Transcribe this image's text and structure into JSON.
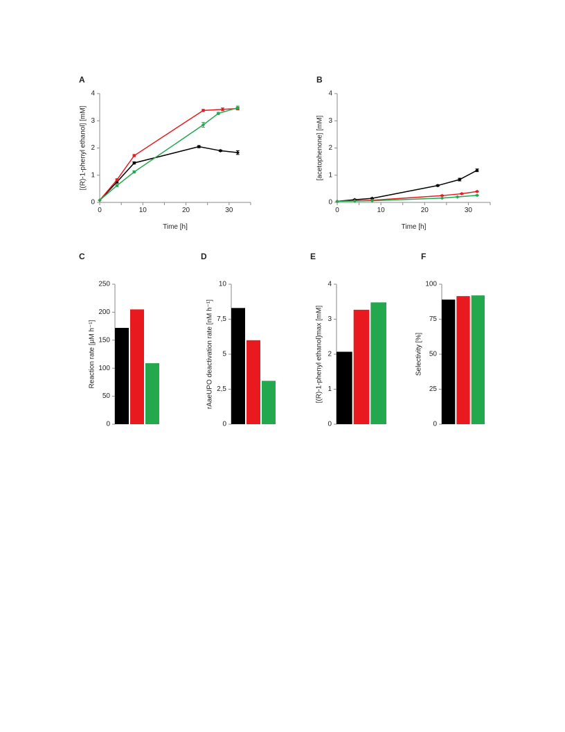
{
  "chart_data": [
    {
      "panel": "A",
      "type": "line",
      "xlabel": "Time [h]",
      "ylabel": "[(R)-1-phenyl ethanol] [mM]",
      "xlim": [
        0,
        35
      ],
      "ylim": [
        0,
        4
      ],
      "xticks": [
        0,
        10,
        20,
        30
      ],
      "yticks": [
        0,
        1,
        2,
        3,
        4
      ],
      "grid": false,
      "series": [
        {
          "color": "#000000",
          "x": [
            0,
            4,
            8,
            23,
            28,
            32
          ],
          "y": [
            0.08,
            0.75,
            1.45,
            2.05,
            1.9,
            1.83
          ],
          "err": [
            0,
            0.04,
            0.04,
            0.04,
            0.03,
            0.07
          ]
        },
        {
          "color": "#e8191f",
          "x": [
            0,
            4,
            8,
            24,
            28.5,
            32
          ],
          "y": [
            0.08,
            0.83,
            1.72,
            3.38,
            3.42,
            3.45
          ],
          "err": [
            0,
            0.04,
            0.04,
            0.04,
            0.05,
            0.05
          ]
        },
        {
          "color": "#23a84e",
          "x": [
            0,
            4,
            8,
            24,
            27.5,
            32
          ],
          "y": [
            0.08,
            0.62,
            1.12,
            2.85,
            3.27,
            3.48
          ],
          "err": [
            0,
            0.04,
            0.04,
            0.09,
            0.04,
            0.06
          ]
        }
      ]
    },
    {
      "panel": "B",
      "type": "line",
      "xlabel": "Time [h]",
      "ylabel": "[acetophenone] [mM]",
      "xlim": [
        0,
        35
      ],
      "ylim": [
        0,
        4
      ],
      "xticks": [
        0,
        10,
        20,
        30
      ],
      "yticks": [
        0,
        1,
        2,
        3,
        4
      ],
      "grid": false,
      "series": [
        {
          "color": "#000000",
          "x": [
            0,
            4,
            8,
            23,
            28,
            32
          ],
          "y": [
            0.04,
            0.1,
            0.15,
            0.62,
            0.84,
            1.18
          ],
          "err": [
            0,
            0.02,
            0.02,
            0.03,
            0.05,
            0.05
          ]
        },
        {
          "color": "#e8191f",
          "x": [
            0,
            4,
            8,
            24,
            28.5,
            32
          ],
          "y": [
            0.04,
            0.06,
            0.08,
            0.25,
            0.32,
            0.4
          ],
          "err": [
            0,
            0.01,
            0.01,
            0.02,
            0.02,
            0.02
          ]
        },
        {
          "color": "#23a84e",
          "x": [
            0,
            4,
            8,
            24,
            27.5,
            32
          ],
          "y": [
            0.04,
            0.05,
            0.06,
            0.16,
            0.2,
            0.26
          ],
          "err": [
            0,
            0.01,
            0.01,
            0.01,
            0.01,
            0.02
          ]
        }
      ]
    },
    {
      "panel": "C",
      "type": "bar",
      "ylabel": "Reaction rate [µM h⁻¹]",
      "ylim": [
        0,
        250
      ],
      "yticks": [
        "0",
        "50",
        "100",
        "150",
        "200",
        "250"
      ],
      "values": [
        172,
        205,
        109
      ],
      "colors": [
        "#000000",
        "#e8191f",
        "#23a84e"
      ]
    },
    {
      "panel": "D",
      "type": "bar",
      "ylabel": "rAaeUPO deactivation rate [nM h⁻¹]",
      "ylim": [
        0,
        10
      ],
      "yticks": [
        "0",
        "2,5",
        "5",
        "7,5",
        "10"
      ],
      "values": [
        8.3,
        6.0,
        3.1
      ],
      "colors": [
        "#000000",
        "#e8191f",
        "#23a84e"
      ]
    },
    {
      "panel": "E",
      "type": "bar",
      "ylabel": "[(R)-1-phenyl ethanol]max [mM]",
      "ylim": [
        0,
        4
      ],
      "yticks": [
        "0",
        "1",
        "2",
        "3",
        "4"
      ],
      "values": [
        2.07,
        3.27,
        3.48
      ],
      "colors": [
        "#000000",
        "#e8191f",
        "#23a84e"
      ]
    },
    {
      "panel": "F",
      "type": "bar",
      "ylabel": "Selectivity [%]",
      "ylim": [
        0,
        100
      ],
      "yticks": [
        "0",
        "25",
        "50",
        "75",
        "100"
      ],
      "values": [
        89,
        91.5,
        92
      ],
      "colors": [
        "#000000",
        "#e8191f",
        "#23a84e"
      ]
    }
  ]
}
